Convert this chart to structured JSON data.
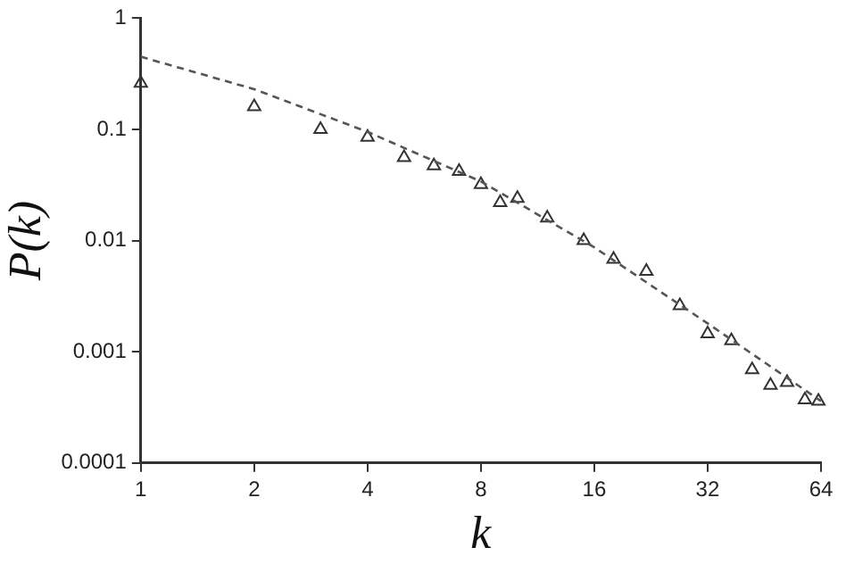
{
  "chart_data": {
    "type": "scatter",
    "xlabel": "k",
    "ylabel": "P(k)",
    "log": "xy",
    "xlim": [
      1,
      64
    ],
    "ylim": [
      0.0001,
      1
    ],
    "xticks": [
      1,
      2,
      4,
      8,
      16,
      32,
      64
    ],
    "yticks": [
      0.0001,
      0.001,
      0.01,
      0.1,
      1
    ],
    "grid": false,
    "legend": false,
    "series": [
      {
        "marker": "triangle",
        "color": "#333333",
        "x": [
          1,
          2,
          3,
          4,
          5,
          6,
          7,
          8,
          9,
          10,
          12,
          15,
          18,
          22,
          27,
          32,
          37,
          42,
          47,
          52,
          58,
          63
        ],
        "values": [
          0.26,
          0.16,
          0.1,
          0.085,
          0.056,
          0.047,
          0.042,
          0.032,
          0.022,
          0.024,
          0.016,
          0.01,
          0.0068,
          0.0053,
          0.0026,
          0.00145,
          0.00126,
          0.00069,
          0.0005,
          0.00053,
          0.00037,
          0.00036
        ]
      },
      {
        "type": "line",
        "marker": "none",
        "line_style": "dashed",
        "color": "#555555",
        "x": [
          1,
          2,
          4,
          8,
          16,
          32,
          64
        ],
        "values": [
          0.45,
          0.23,
          0.095,
          0.034,
          0.0087,
          0.0018,
          0.00036
        ]
      }
    ]
  }
}
